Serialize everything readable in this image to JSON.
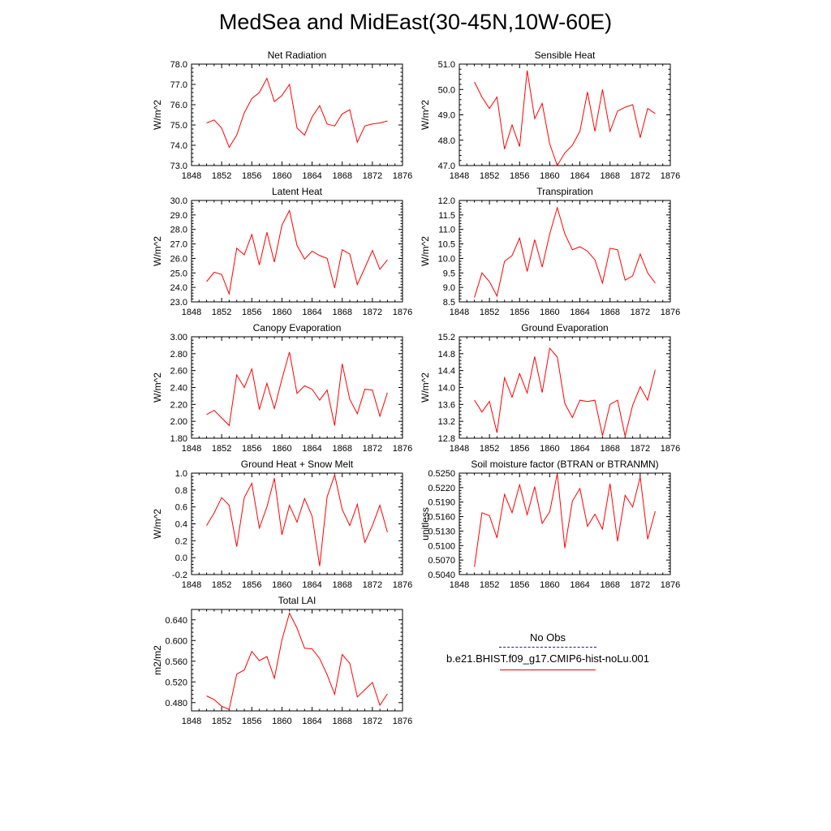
{
  "title": "MedSea and MidEast(30-45N,10W-60E)",
  "legend": {
    "obs_label": "No Obs",
    "model_label": "b.e21.BHIST.f09_g17.CMIP6-hist-noLu.001",
    "model_color": "#ff0000",
    "obs_color": "#1e1e8c"
  },
  "chart_data": [
    {
      "type": "line",
      "title": "Net Radiation",
      "ylabel": "W/m^2",
      "xlim": [
        1848,
        1876
      ],
      "ylim": [
        73.0,
        78.0
      ],
      "xticks": [
        1848,
        1852,
        1856,
        1860,
        1864,
        1868,
        1872,
        1876
      ],
      "yticks": [
        "73.0",
        "74.0",
        "75.0",
        "76.0",
        "77.0",
        "78.0"
      ],
      "x": [
        1850,
        1851,
        1852,
        1853,
        1854,
        1855,
        1856,
        1857,
        1858,
        1859,
        1860,
        1861,
        1862,
        1863,
        1864,
        1865,
        1866,
        1867,
        1868,
        1869,
        1870,
        1871,
        1872,
        1873,
        1874
      ],
      "series": [
        {
          "values": [
            75.1,
            75.25,
            74.85,
            73.9,
            74.5,
            75.6,
            76.3,
            76.6,
            77.3,
            76.15,
            76.45,
            77.0,
            74.85,
            74.5,
            75.4,
            75.95,
            75.05,
            74.95,
            75.55,
            75.75,
            74.15,
            74.95,
            75.05,
            75.1,
            75.2
          ]
        }
      ]
    },
    {
      "type": "line",
      "title": "Sensible Heat",
      "ylabel": "W/m^2",
      "xlim": [
        1848,
        1876
      ],
      "ylim": [
        47.0,
        51.0
      ],
      "xticks": [
        1848,
        1852,
        1856,
        1860,
        1864,
        1868,
        1872,
        1876
      ],
      "yticks": [
        "47.0",
        "48.0",
        "49.0",
        "50.0",
        "51.0"
      ],
      "x": [
        1850,
        1851,
        1852,
        1853,
        1854,
        1855,
        1856,
        1857,
        1858,
        1859,
        1860,
        1861,
        1862,
        1863,
        1864,
        1865,
        1866,
        1867,
        1868,
        1869,
        1870,
        1871,
        1872,
        1873,
        1874
      ],
      "series": [
        {
          "values": [
            50.3,
            49.7,
            49.25,
            49.7,
            47.65,
            48.6,
            47.75,
            50.75,
            48.85,
            49.45,
            47.85,
            47.0,
            47.5,
            47.8,
            48.35,
            49.9,
            48.35,
            50.0,
            48.35,
            49.15,
            49.3,
            49.4,
            48.1,
            49.25,
            49.05
          ]
        }
      ]
    },
    {
      "type": "line",
      "title": "Latent Heat",
      "ylabel": "W/m^2",
      "xlim": [
        1848,
        1876
      ],
      "ylim": [
        23.0,
        30.0
      ],
      "xticks": [
        1848,
        1852,
        1856,
        1860,
        1864,
        1868,
        1872,
        1876
      ],
      "yticks": [
        "23.0",
        "24.0",
        "25.0",
        "26.0",
        "27.0",
        "28.0",
        "29.0",
        "30.0"
      ],
      "x": [
        1850,
        1851,
        1852,
        1853,
        1854,
        1855,
        1856,
        1857,
        1858,
        1859,
        1860,
        1861,
        1862,
        1863,
        1864,
        1865,
        1866,
        1867,
        1868,
        1869,
        1870,
        1871,
        1872,
        1873,
        1874
      ],
      "series": [
        {
          "values": [
            24.4,
            25.05,
            24.9,
            23.55,
            26.7,
            26.25,
            27.65,
            25.55,
            27.8,
            25.75,
            28.3,
            29.3,
            26.9,
            25.95,
            26.5,
            26.2,
            26.0,
            23.95,
            26.6,
            26.3,
            24.2,
            25.35,
            26.55,
            25.25,
            25.9
          ]
        }
      ]
    },
    {
      "type": "line",
      "title": "Transpiration",
      "ylabel": "W/m^2",
      "xlim": [
        1848,
        1876
      ],
      "ylim": [
        8.5,
        12.0
      ],
      "xticks": [
        1848,
        1852,
        1856,
        1860,
        1864,
        1868,
        1872,
        1876
      ],
      "yticks": [
        "8.5",
        "9.0",
        "9.5",
        "10.0",
        "10.5",
        "11.0",
        "11.5",
        "12.0"
      ],
      "x": [
        1850,
        1851,
        1852,
        1853,
        1854,
        1855,
        1856,
        1857,
        1858,
        1859,
        1860,
        1861,
        1862,
        1863,
        1864,
        1865,
        1866,
        1867,
        1868,
        1869,
        1870,
        1871,
        1872,
        1873,
        1874
      ],
      "series": [
        {
          "values": [
            8.65,
            9.5,
            9.2,
            8.7,
            9.9,
            10.1,
            10.7,
            9.55,
            10.65,
            9.7,
            10.85,
            11.75,
            10.85,
            10.3,
            10.4,
            10.25,
            9.95,
            9.15,
            10.35,
            10.3,
            9.25,
            9.4,
            10.15,
            9.5,
            9.15
          ]
        }
      ]
    },
    {
      "type": "line",
      "title": "Canopy Evaporation",
      "ylabel": "W/m^2",
      "xlim": [
        1848,
        1876
      ],
      "ylim": [
        1.8,
        3.0
      ],
      "xticks": [
        1848,
        1852,
        1856,
        1860,
        1864,
        1868,
        1872,
        1876
      ],
      "yticks": [
        "1.80",
        "2.00",
        "2.20",
        "2.40",
        "2.60",
        "2.80",
        "3.00"
      ],
      "x": [
        1850,
        1851,
        1852,
        1853,
        1854,
        1855,
        1856,
        1857,
        1858,
        1859,
        1860,
        1861,
        1862,
        1863,
        1864,
        1865,
        1866,
        1867,
        1868,
        1869,
        1870,
        1871,
        1872,
        1873,
        1874
      ],
      "series": [
        {
          "values": [
            2.08,
            2.13,
            2.04,
            1.95,
            2.55,
            2.4,
            2.62,
            2.14,
            2.45,
            2.15,
            2.5,
            2.82,
            2.33,
            2.42,
            2.38,
            2.25,
            2.37,
            1.95,
            2.68,
            2.26,
            2.09,
            2.38,
            2.37,
            2.06,
            2.34
          ]
        }
      ]
    },
    {
      "type": "line",
      "title": "Ground Evaporation",
      "ylabel": "W/m^2",
      "xlim": [
        1848,
        1876
      ],
      "ylim": [
        12.8,
        15.2
      ],
      "xticks": [
        1848,
        1852,
        1856,
        1860,
        1864,
        1868,
        1872,
        1876
      ],
      "yticks": [
        "12.8",
        "13.2",
        "13.6",
        "14.0",
        "14.4",
        "14.8",
        "15.2"
      ],
      "x": [
        1850,
        1851,
        1852,
        1853,
        1854,
        1855,
        1856,
        1857,
        1858,
        1859,
        1860,
        1861,
        1862,
        1863,
        1864,
        1865,
        1866,
        1867,
        1868,
        1869,
        1870,
        1871,
        1872,
        1873,
        1874
      ],
      "series": [
        {
          "values": [
            13.7,
            13.42,
            13.67,
            12.93,
            14.23,
            13.77,
            14.33,
            13.87,
            14.73,
            13.88,
            14.93,
            14.72,
            13.62,
            13.29,
            13.7,
            13.67,
            13.7,
            12.86,
            13.6,
            13.7,
            12.85,
            13.58,
            14.02,
            13.7,
            14.42
          ]
        }
      ]
    },
    {
      "type": "line",
      "title": "Ground Heat + Snow Melt",
      "ylabel": "W/m^2",
      "xlim": [
        1848,
        1876
      ],
      "ylim": [
        -0.2,
        1.0
      ],
      "xticks": [
        1848,
        1852,
        1856,
        1860,
        1864,
        1868,
        1872,
        1876
      ],
      "yticks": [
        "-0.2",
        "0.0",
        "0.2",
        "0.4",
        "0.6",
        "0.8",
        "1.0"
      ],
      "x": [
        1850,
        1851,
        1852,
        1853,
        1854,
        1855,
        1856,
        1857,
        1858,
        1859,
        1860,
        1861,
        1862,
        1863,
        1864,
        1865,
        1866,
        1867,
        1868,
        1869,
        1870,
        1871,
        1872,
        1873,
        1874
      ],
      "series": [
        {
          "values": [
            0.38,
            0.53,
            0.71,
            0.62,
            0.13,
            0.71,
            0.88,
            0.35,
            0.6,
            0.94,
            0.27,
            0.62,
            0.42,
            0.7,
            0.49,
            -0.1,
            0.72,
            0.98,
            0.57,
            0.38,
            0.63,
            0.18,
            0.38,
            0.62,
            0.3
          ]
        }
      ]
    },
    {
      "type": "line",
      "title": "Soil moisture factor (BTRAN or BTRANMN)",
      "ylabel": "unitless",
      "xlim": [
        1848,
        1876
      ],
      "ylim": [
        0.504,
        0.525
      ],
      "xticks": [
        1848,
        1852,
        1856,
        1860,
        1864,
        1868,
        1872,
        1876
      ],
      "yticks": [
        "0.5040",
        "0.5070",
        "0.5100",
        "0.5130",
        "0.5160",
        "0.5190",
        "0.5220",
        "0.5250"
      ],
      "x": [
        1850,
        1851,
        1852,
        1853,
        1854,
        1855,
        1856,
        1857,
        1858,
        1859,
        1860,
        1861,
        1862,
        1863,
        1864,
        1865,
        1866,
        1867,
        1868,
        1869,
        1870,
        1871,
        1872,
        1873,
        1874
      ],
      "series": [
        {
          "values": [
            0.5056,
            0.5168,
            0.5162,
            0.5116,
            0.5206,
            0.5168,
            0.5226,
            0.5164,
            0.5222,
            0.5146,
            0.517,
            0.5249,
            0.5095,
            0.5192,
            0.5218,
            0.514,
            0.5165,
            0.5134,
            0.5228,
            0.5109,
            0.5204,
            0.518,
            0.5242,
            0.5113,
            0.5171
          ]
        }
      ]
    },
    {
      "type": "line",
      "title": "Total LAI",
      "ylabel": "m2/m2",
      "xlim": [
        1848,
        1876
      ],
      "ylim": [
        0.464,
        0.66
      ],
      "xticks": [
        1848,
        1852,
        1856,
        1860,
        1864,
        1868,
        1872,
        1876
      ],
      "yticks": [
        "0.480",
        "0.520",
        "0.560",
        "0.600",
        "0.640"
      ],
      "x": [
        1850,
        1851,
        1852,
        1853,
        1854,
        1855,
        1856,
        1857,
        1858,
        1859,
        1860,
        1861,
        1862,
        1863,
        1864,
        1865,
        1866,
        1867,
        1868,
        1869,
        1870,
        1871,
        1872,
        1873,
        1874
      ],
      "series": [
        {
          "values": [
            0.493,
            0.486,
            0.473,
            0.467,
            0.535,
            0.543,
            0.579,
            0.561,
            0.569,
            0.527,
            0.601,
            0.653,
            0.624,
            0.585,
            0.584,
            0.565,
            0.534,
            0.496,
            0.573,
            0.556,
            0.491,
            0.505,
            0.519,
            0.475,
            0.497
          ]
        }
      ]
    }
  ]
}
